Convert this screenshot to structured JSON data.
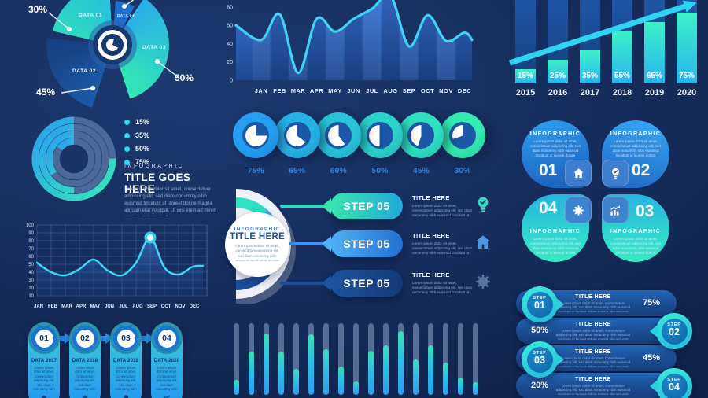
{
  "lorem": "Lorem ipsum dolor sit amet, consectetuer adipiscing elit, sed diam nonummy nibh euismod tincidunt ut laoreet dolore magna aliquam erat volutpat.",
  "lorem_long": "Lorem ipsum dolor sit amet, consectetuer adipiscing elit, sed diam nonummy nibh euismod tincidunt ut laoreet dolore magna aliquam erat volutpat. Ut wisi enim ad minim veniam, quis nostrud.",
  "accent_colors": {
    "cyan": "#2ed4f2",
    "teal_green": "#36ecc4",
    "bright_blue": "#2196f3",
    "deep_blue": "#1b4d9c",
    "navy_bg": "#12284f"
  },
  "chart_data": [
    {
      "id": "exploded-donut",
      "type": "pie",
      "title": "",
      "segments": [
        {
          "label": "DATA 01",
          "value": 30,
          "pct_label": "30%",
          "color_start": "#2fd9c0",
          "color_end": "#25c2dc",
          "r": 78,
          "a0": 283,
          "a1": 357
        },
        {
          "label": "DATA 04",
          "value": null,
          "pct_label": "",
          "color_start": "#1e6fd0",
          "color_end": "#1e6fd0",
          "r": 56,
          "a0": 4,
          "a1": 30
        },
        {
          "label": "DATA 03",
          "value": 50,
          "pct_label": "50%",
          "color_start": "#29aee8",
          "color_end": "#31e8b4",
          "r": 72,
          "a0": 34,
          "a1": 162
        },
        {
          "label": "DATA 02",
          "value": 45,
          "pct_label": "45%",
          "color_start": "#1d5aa8",
          "color_end": "#163f80",
          "r": 84,
          "a0": 198,
          "a1": 276
        }
      ]
    },
    {
      "id": "area-monthly",
      "type": "area",
      "x": [
        "JAN",
        "FEB",
        "MAR",
        "APR",
        "MAY",
        "JUN",
        "JUL",
        "AUG",
        "SEP",
        "OCT",
        "NOV",
        "DEC"
      ],
      "values": [
        44,
        72,
        8,
        67,
        53,
        67,
        78,
        92,
        37,
        71,
        43,
        52
      ],
      "edge_start": 60,
      "edge_end": 44,
      "yticks": [
        0,
        20,
        40,
        60,
        80
      ],
      "ylim": [
        0,
        90
      ],
      "grid": false
    },
    {
      "id": "bars-yearly",
      "type": "bar",
      "categories": [
        "2015",
        "2016",
        "2017",
        "2018",
        "2019",
        "2020"
      ],
      "values": [
        15,
        25,
        35,
        55,
        65,
        75
      ],
      "labels": [
        "15%",
        "25%",
        "35%",
        "55%",
        "65%",
        "75%"
      ],
      "trend_arrow": true,
      "ylim": [
        0,
        100
      ]
    },
    {
      "id": "progress-rings",
      "type": "donut-rings",
      "rings_outer_to_inner": [
        75,
        50,
        35,
        15
      ],
      "legend": [
        {
          "label": "15%"
        },
        {
          "label": "35%"
        },
        {
          "label": "50%"
        },
        {
          "label": "75%"
        }
      ]
    },
    {
      "id": "pie-row",
      "type": "pie-row",
      "values": [
        75,
        65,
        60,
        50,
        45,
        30
      ],
      "labels": [
        "75%",
        "65%",
        "60%",
        "50%",
        "45%",
        "30%"
      ],
      "outer_colors": [
        "#259df0",
        "#27b2e4",
        "#29c3d8",
        "#2bd2cc",
        "#2edfc0",
        "#33ecb0"
      ]
    },
    {
      "id": "line-monthly",
      "type": "line",
      "x": [
        "JAN",
        "FEB",
        "MAR",
        "APR",
        "MAY",
        "JUN",
        "JUL",
        "AUG",
        "SEP",
        "OCT",
        "NOV",
        "DEC"
      ],
      "values": [
        52,
        40,
        36,
        44,
        56,
        42,
        36,
        52,
        84,
        46,
        37,
        47
      ],
      "edge_end": 48,
      "marker_index": 8,
      "yticks": [
        10,
        20,
        30,
        40,
        50,
        60,
        70,
        80,
        90,
        100
      ],
      "ylim": [
        10,
        100
      ],
      "grid": true
    },
    {
      "id": "mini-vbars",
      "type": "bar",
      "values": [
        21,
        61,
        86,
        61,
        36,
        85,
        64,
        40,
        19,
        62,
        69,
        89,
        50,
        69,
        45,
        24,
        18
      ],
      "ylim": [
        0,
        100
      ]
    }
  ],
  "rings_panel": {
    "kicker": "INFOGRAPHIC",
    "title": "TITLE GOES HERE"
  },
  "steps_panel": {
    "kicker": "INFOGRAPHIC",
    "title": "TITLE HERE",
    "banners": [
      {
        "label": "STEP 05",
        "title": "TITLE HERE",
        "icon": "bulb-check-icon"
      },
      {
        "label": "STEP 05",
        "title": "TITLE HERE",
        "icon": "home-icon"
      },
      {
        "label": "STEP 05",
        "title": "TITLE HERE",
        "icon": "gear-icon"
      }
    ]
  },
  "clover": {
    "items": [
      {
        "num": "01",
        "title": "INFOGRAPHIC"
      },
      {
        "num": "02",
        "title": "INFOGRAPHIC"
      },
      {
        "num": "04",
        "title": "INFOGRAPHIC"
      },
      {
        "num": "03",
        "title": "INFOGRAPHIC"
      }
    ],
    "center_icons": [
      "home-icon",
      "bulb-check-icon",
      "gear-icon",
      "chart-icon"
    ]
  },
  "timeline": {
    "cards": [
      {
        "num": "01",
        "title": "DATA 2017",
        "icon": "home-icon"
      },
      {
        "num": "02",
        "title": "DATA 2018",
        "icon": "gear-icon"
      },
      {
        "num": "03",
        "title": "DATA 2019",
        "icon": "bulb-icon"
      },
      {
        "num": "04",
        "title": "DATA 2020",
        "icon": "chart-icon"
      }
    ]
  },
  "hsteps": {
    "rows": [
      {
        "step": "STEP",
        "num": "01",
        "title": "TITLE HERE",
        "pct": "75%",
        "badge_side": "left"
      },
      {
        "step": "STEP",
        "num": "02",
        "title": "TITLE HERE",
        "pct": "50%",
        "badge_side": "right"
      },
      {
        "step": "STEP",
        "num": "03",
        "title": "TITLE HERE",
        "pct": "45%",
        "badge_side": "left"
      },
      {
        "step": "STEP",
        "num": "04",
        "title": "TITLE HERE",
        "pct": "20%",
        "badge_side": "right"
      }
    ]
  }
}
